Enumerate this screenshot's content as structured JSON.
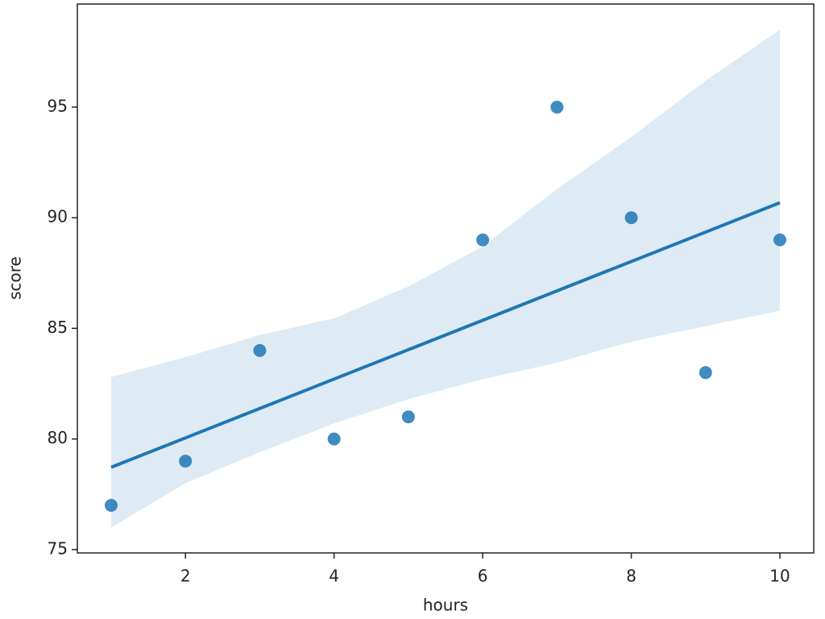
{
  "chart_data": {
    "type": "regplot",
    "xlabel": "hours",
    "ylabel": "score",
    "x": [
      1,
      2,
      3,
      4,
      5,
      6,
      7,
      8,
      9,
      10
    ],
    "y": [
      77,
      79,
      84,
      80,
      81,
      89,
      95,
      90,
      83,
      89
    ],
    "color": "#1f77b4",
    "fit": {
      "x": [
        1,
        10
      ],
      "y": [
        78.72,
        90.68
      ]
    },
    "band": {
      "x": [
        1,
        2,
        3,
        4,
        5,
        6,
        7,
        8,
        9,
        10
      ],
      "upper": [
        82.8,
        83.7,
        84.7,
        85.45,
        86.9,
        88.7,
        91.3,
        93.65,
        96.2,
        98.5
      ],
      "lower": [
        76.0,
        78.0,
        79.4,
        80.7,
        81.8,
        82.7,
        83.45,
        84.4,
        85.1,
        85.8
      ]
    },
    "xlim": [
      0.545,
      10.455
    ],
    "ylim": [
      74.85,
      99.66
    ],
    "xticks": [
      2,
      4,
      6,
      8,
      10
    ],
    "yticks": [
      75,
      80,
      85,
      90,
      95
    ]
  }
}
